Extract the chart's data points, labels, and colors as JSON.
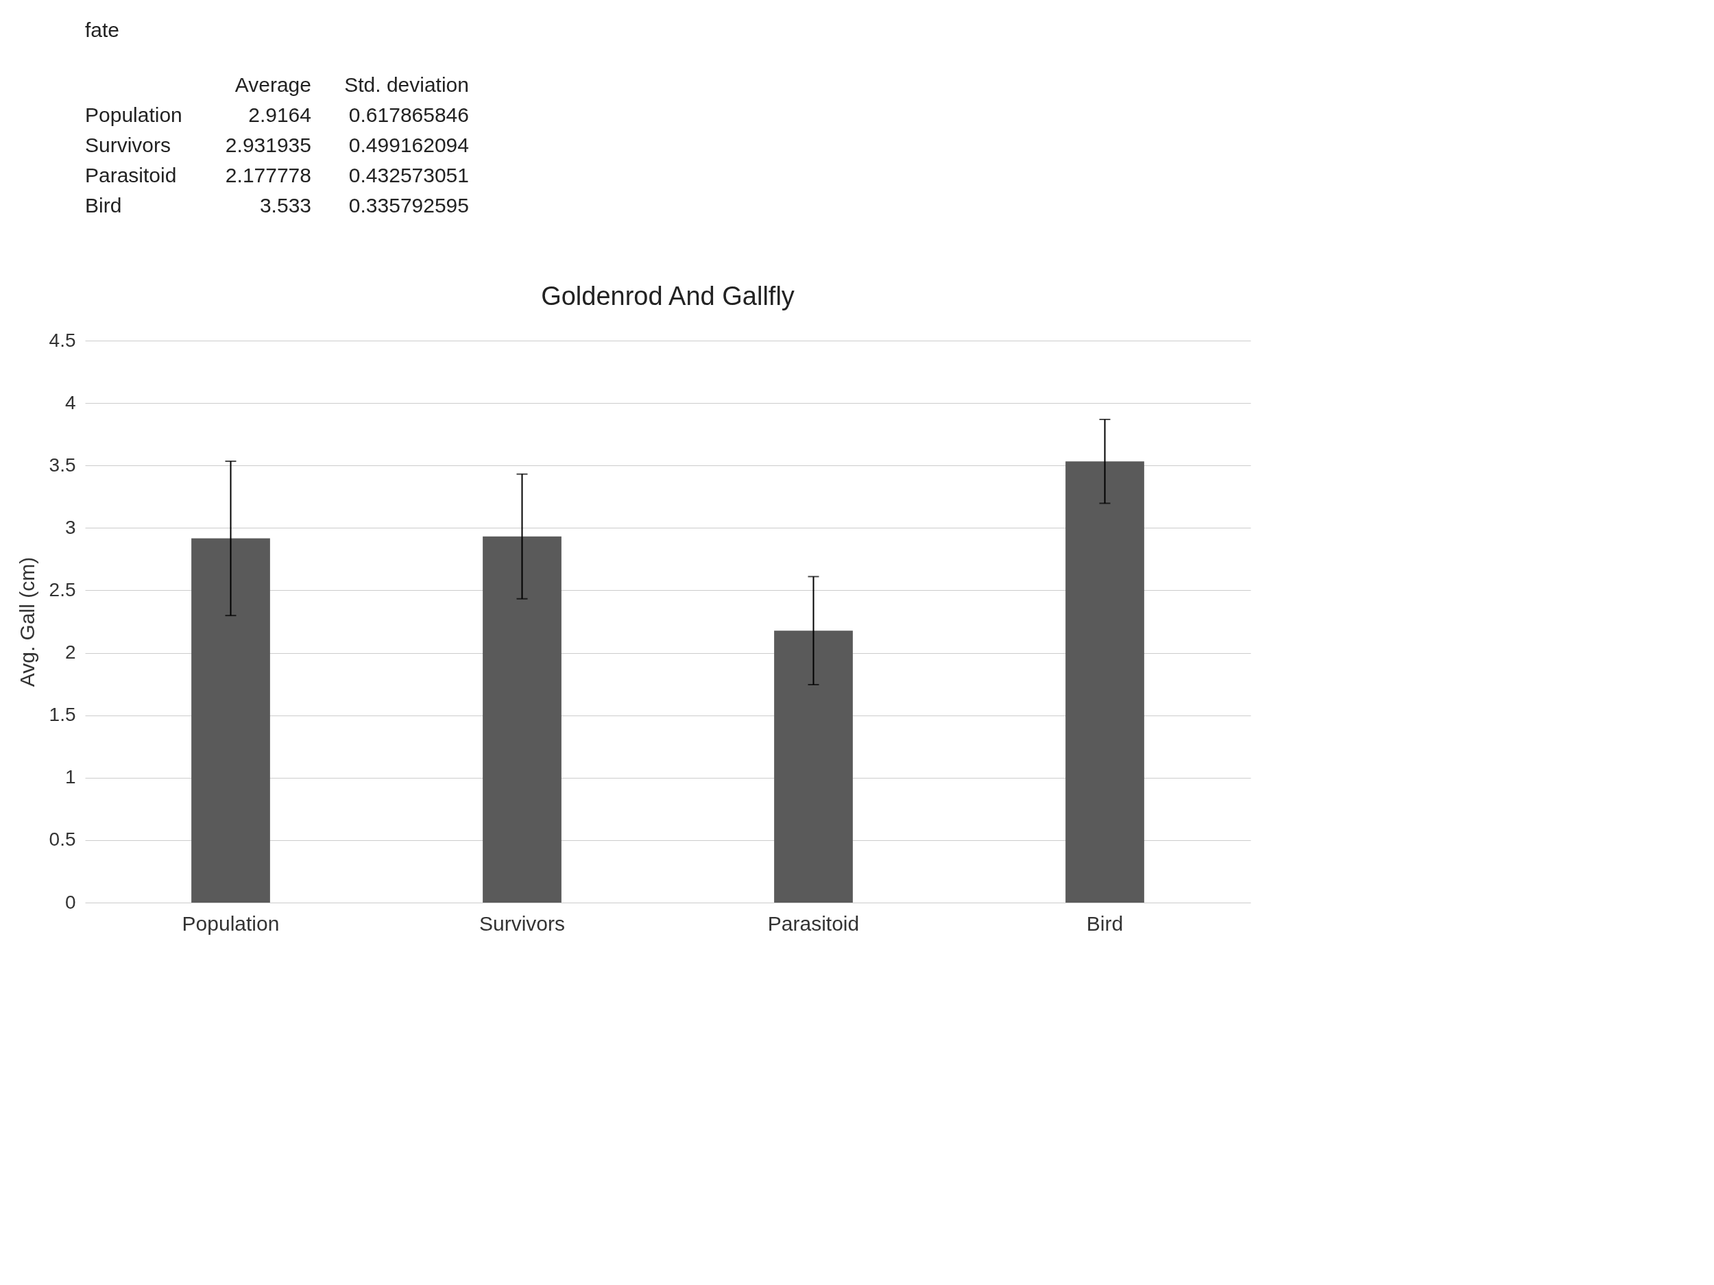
{
  "chart_data": {
    "type": "bar",
    "title": "Goldenrod And Gallfly",
    "ylabel": "Avg. Gall (cm)",
    "categories": [
      "Population",
      "Survivors",
      "Parasitoid",
      "Bird"
    ],
    "values": [
      2.9164,
      2.931935,
      2.177778,
      3.533
    ],
    "errors": [
      0.617865846,
      0.499162094,
      0.432573051,
      0.335792595
    ],
    "color": "#5a5a5a",
    "ylim": [
      0,
      4.5
    ],
    "yticks": [
      0,
      0.5,
      1,
      1.5,
      2,
      2.5,
      3,
      3.5,
      4,
      4.5
    ],
    "grid": "y",
    "annotations": [
      "fate",
      "Average",
      "Std. deviation",
      "2.9164",
      "0.617865846",
      "2.931935",
      "0.499162094",
      "2.177778",
      "0.432573051",
      "3.533",
      "0.335792595"
    ]
  }
}
